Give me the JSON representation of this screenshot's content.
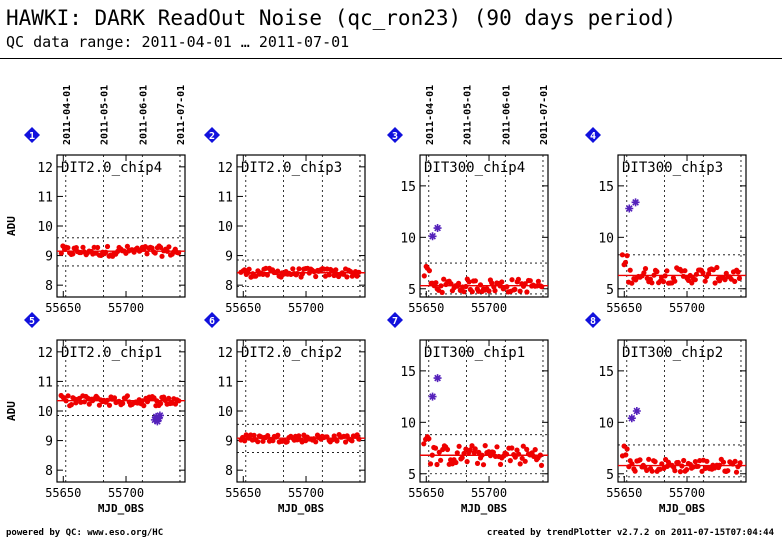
{
  "header": {
    "title": "HAWKI: DARK ReadOut Noise (qc_ron23) (90 days period)",
    "subtitle": "QC data range: 2011-04-01 … 2011-07-01"
  },
  "footer": {
    "left": "powered by QC: www.eso.org/HC",
    "right": "created by trendPlotter v2.7.2 on 2011-07-15T07:04:44"
  },
  "colors": {
    "data": "#ee0000",
    "outlier": "#5522bb",
    "badge": "#1111dd"
  },
  "date_ticks": [
    "2011-04-01",
    "2011-05-01",
    "2011-06-01",
    "2011-07-01"
  ],
  "chart_data": [
    {
      "type": "scatter",
      "badge": "1",
      "panel_label": "DIT2.0_chip4",
      "ylabel": "ADU",
      "xlabel": "",
      "xlim": [
        55645,
        55747
      ],
      "ylim": [
        7.6,
        12.4
      ],
      "yticks": [
        8,
        9,
        10,
        11,
        12
      ],
      "xticks": [
        55650,
        55700
      ],
      "mean": 9.15,
      "band": [
        8.65,
        9.6
      ],
      "spread": 0.08,
      "outliers": []
    },
    {
      "type": "scatter",
      "badge": "2",
      "panel_label": "DIT2.0_chip3",
      "ylabel": "",
      "xlabel": "",
      "xlim": [
        55645,
        55747
      ],
      "ylim": [
        7.6,
        12.4
      ],
      "yticks": [
        8,
        9,
        10,
        11,
        12
      ],
      "xticks": [
        55650,
        55700
      ],
      "mean": 8.42,
      "band": [
        7.95,
        8.85
      ],
      "spread": 0.07,
      "outliers": []
    },
    {
      "type": "scatter",
      "badge": "3",
      "panel_label": "DIT300_chip4",
      "ylabel": "",
      "xlabel": "",
      "xlim": [
        55645,
        55747
      ],
      "ylim": [
        4.2,
        18
      ],
      "yticks": [
        5,
        10,
        15
      ],
      "xticks": [
        55650,
        55700
      ],
      "mean": 5.3,
      "band": [
        4.5,
        7.5
      ],
      "spread": 0.3,
      "outliers": [
        {
          "x": 55655,
          "y": 10.1
        },
        {
          "x": 55659,
          "y": 10.9
        }
      ]
    },
    {
      "type": "scatter",
      "badge": "4",
      "panel_label": "DIT300_chip3",
      "ylabel": "",
      "xlabel": "",
      "xlim": [
        55645,
        55747
      ],
      "ylim": [
        4.2,
        18
      ],
      "yticks": [
        5,
        10,
        15
      ],
      "xticks": [
        55650,
        55700
      ],
      "mean": 6.3,
      "band": [
        5.0,
        8.3
      ],
      "spread": 0.35,
      "outliers": [
        {
          "x": 55654,
          "y": 12.8
        },
        {
          "x": 55659,
          "y": 13.4
        }
      ]
    },
    {
      "type": "scatter",
      "badge": "5",
      "panel_label": "DIT2.0_chip1",
      "ylabel": "ADU",
      "xlabel": "MJD_OBS",
      "xlim": [
        55645,
        55747
      ],
      "ylim": [
        7.6,
        12.4
      ],
      "yticks": [
        8,
        9,
        10,
        11,
        12
      ],
      "xticks": [
        55650,
        55700
      ],
      "mean": 10.35,
      "band": [
        9.85,
        10.85
      ],
      "spread": 0.08,
      "outliers": [
        {
          "x": 55723,
          "y": 9.7
        },
        {
          "x": 55724,
          "y": 9.8
        },
        {
          "x": 55725,
          "y": 9.65
        },
        {
          "x": 55726,
          "y": 9.75
        },
        {
          "x": 55727,
          "y": 9.85
        }
      ]
    },
    {
      "type": "scatter",
      "badge": "6",
      "panel_label": "DIT2.0_chip2",
      "ylabel": "",
      "xlabel": "MJD_OBS",
      "xlim": [
        55645,
        55747
      ],
      "ylim": [
        7.6,
        12.4
      ],
      "yticks": [
        8,
        9,
        10,
        11,
        12
      ],
      "xticks": [
        55650,
        55700
      ],
      "mean": 9.08,
      "band": [
        8.6,
        9.55
      ],
      "spread": 0.06,
      "outliers": []
    },
    {
      "type": "scatter",
      "badge": "7",
      "panel_label": "DIT300_chip1",
      "ylabel": "",
      "xlabel": "MJD_OBS",
      "xlim": [
        55645,
        55747
      ],
      "ylim": [
        4.2,
        18
      ],
      "yticks": [
        5,
        10,
        15
      ],
      "xticks": [
        55650,
        55700
      ],
      "mean": 6.8,
      "band": [
        5.0,
        8.8
      ],
      "spread": 0.45,
      "outliers": [
        {
          "x": 55655,
          "y": 12.5
        },
        {
          "x": 55659,
          "y": 14.3
        }
      ]
    },
    {
      "type": "scatter",
      "badge": "8",
      "panel_label": "DIT300_chip2",
      "ylabel": "",
      "xlabel": "MJD_OBS",
      "xlim": [
        55645,
        55747
      ],
      "ylim": [
        4.2,
        18
      ],
      "yticks": [
        5,
        10,
        15
      ],
      "xticks": [
        55650,
        55700
      ],
      "mean": 5.8,
      "band": [
        4.7,
        7.8
      ],
      "spread": 0.3,
      "outliers": [
        {
          "x": 55656,
          "y": 10.4
        },
        {
          "x": 55660,
          "y": 11.1
        }
      ]
    }
  ]
}
